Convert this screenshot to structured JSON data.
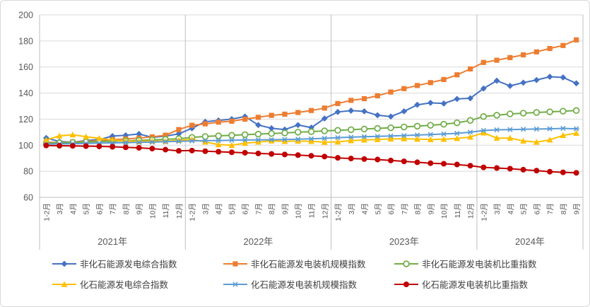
{
  "figure": {
    "background": "#ffffff",
    "border_color": "#d9d9d9",
    "axis_text_color": "#595959",
    "gridline_color": "#d9d9d9",
    "separator_color": "#bfbfbf",
    "legend_text_color": "#404040"
  },
  "chart_data": {
    "type": "line",
    "title": "",
    "xlabel": "",
    "ylabel": "",
    "grid": "horizontal",
    "legend_position": "bottom",
    "y_axis": {
      "min": 60,
      "max": 200,
      "tick_step": 20,
      "ticks": [
        200,
        180,
        160,
        140,
        120,
        100,
        80,
        60
      ]
    },
    "x_axis": {
      "year_groups": [
        {
          "year_label": "2021年",
          "months": [
            "1-2月",
            "3月",
            "4月",
            "5月",
            "6月",
            "7月",
            "8月",
            "9月",
            "10月",
            "11月",
            "12月"
          ]
        },
        {
          "year_label": "2022年",
          "months": [
            "1-2月",
            "3月",
            "4月",
            "5月",
            "6月",
            "7月",
            "8月",
            "9月",
            "10月",
            "11月",
            "12月"
          ]
        },
        {
          "year_label": "2023年",
          "months": [
            "1-2月",
            "3月",
            "4月",
            "5月",
            "6月",
            "7月",
            "8月",
            "9月",
            "10月",
            "11月",
            "12月"
          ]
        },
        {
          "year_label": "2024年",
          "months": [
            "1-2月",
            "3月",
            "4月",
            "5月",
            "6月",
            "7月",
            "8月",
            "9月"
          ]
        }
      ]
    },
    "series": [
      {
        "name": "非化石能源发电综合指数",
        "color": "#4472C4",
        "marker": "diamond",
        "values": [
          105.6,
          102.8,
          102.3,
          103.6,
          104.4,
          107.0,
          107.6,
          108.6,
          106.0,
          107.0,
          108.7,
          113.0,
          118.0,
          119.0,
          120.0,
          122.0,
          115.5,
          113.0,
          112.0,
          115.5,
          113.5,
          120.5,
          125.5,
          126.5,
          126.0,
          123.0,
          122.0,
          126.0,
          131.0,
          132.5,
          132.0,
          135.5,
          136.0,
          143.5,
          149.5,
          145.5,
          148.0,
          150.0,
          152.5,
          152.0,
          147.5
        ]
      },
      {
        "name": "非化石能源发电装机规模指数",
        "color": "#ED7D31",
        "marker": "square",
        "values": [
          102.3,
          102.0,
          102.5,
          103.0,
          103.6,
          104.2,
          104.8,
          105.4,
          106.4,
          107.7,
          112.0,
          115.3,
          116.4,
          117.7,
          118.4,
          120.0,
          121.4,
          122.9,
          123.8,
          125.1,
          126.6,
          128.5,
          132.0,
          134.4,
          135.7,
          137.9,
          140.8,
          143.4,
          145.8,
          148.0,
          150.4,
          154.0,
          158.5,
          163.5,
          165.2,
          167.2,
          169.3,
          171.6,
          174.2,
          176.5,
          180.8
        ]
      },
      {
        "name": "非化石能源发电装机比重指数",
        "color": "#70AD47",
        "marker": "circle-open",
        "values": [
          101.5,
          101.9,
          102.2,
          102.5,
          102.8,
          103.1,
          103.4,
          103.7,
          104.1,
          104.5,
          105.0,
          106.0,
          106.7,
          107.2,
          107.6,
          108.1,
          108.5,
          109.0,
          109.4,
          110.0,
          110.4,
          111.0,
          111.4,
          111.9,
          112.4,
          112.9,
          113.4,
          114.0,
          114.6,
          115.3,
          116.1,
          117.2,
          119.0,
          122.0,
          123.0,
          124.0,
          124.6,
          125.1,
          125.6,
          126.1,
          126.6
        ]
      },
      {
        "name": "化石能源发电综合指数",
        "color": "#FFC000",
        "marker": "triangle",
        "values": [
          104.0,
          107.2,
          108.0,
          106.5,
          105.3,
          104.0,
          103.2,
          102.8,
          103.2,
          103.0,
          103.8,
          104.5,
          102.5,
          100.5,
          100.0,
          101.5,
          102.5,
          103.3,
          103.0,
          103.2,
          103.0,
          102.3,
          102.6,
          103.5,
          104.0,
          104.4,
          104.8,
          105.0,
          104.7,
          104.4,
          104.6,
          105.2,
          106.3,
          109.5,
          105.5,
          105.5,
          103.3,
          102.4,
          104.1,
          107.5,
          109.2
        ]
      },
      {
        "name": "化石能源发电装机规模指数",
        "color": "#5B9BD5",
        "marker": "asterisk",
        "values": [
          100.8,
          101.0,
          101.2,
          101.4,
          101.6,
          101.8,
          102.0,
          102.2,
          102.4,
          102.7,
          103.0,
          103.3,
          103.5,
          103.6,
          103.8,
          104.0,
          104.1,
          104.2,
          104.4,
          104.6,
          104.9,
          105.3,
          105.8,
          106.2,
          106.5,
          106.8,
          107.1,
          107.4,
          107.8,
          108.2,
          108.6,
          109.1,
          110.0,
          111.3,
          111.8,
          112.0,
          112.2,
          112.4,
          112.6,
          112.9,
          112.6
        ]
      },
      {
        "name": "化石能源发电装机比重指数",
        "color": "#C00000",
        "marker": "circle",
        "values": [
          99.8,
          99.6,
          99.5,
          99.3,
          99.1,
          98.8,
          98.4,
          98.0,
          97.4,
          96.6,
          95.7,
          95.9,
          95.4,
          95.0,
          94.6,
          94.2,
          93.7,
          93.3,
          92.9,
          92.4,
          91.9,
          91.3,
          90.3,
          89.8,
          89.4,
          89.0,
          88.3,
          87.6,
          86.9,
          86.2,
          85.8,
          85.2,
          84.3,
          83.0,
          82.5,
          82.0,
          81.2,
          80.5,
          79.7,
          79.2,
          78.8
        ]
      }
    ]
  }
}
